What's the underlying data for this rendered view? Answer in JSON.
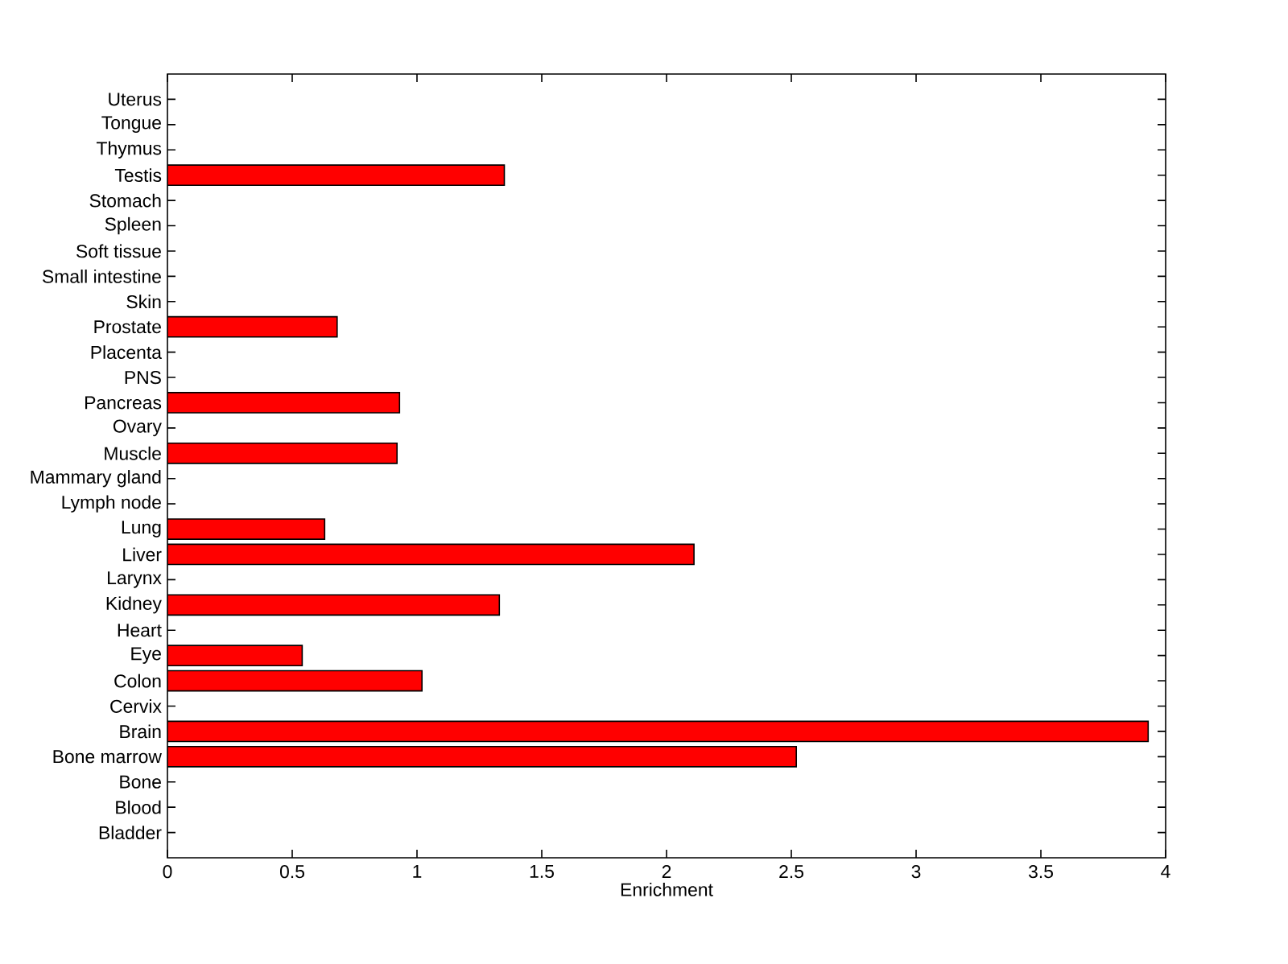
{
  "chart_data": {
    "type": "bar",
    "orientation": "horizontal",
    "xlabel": "Enrichment",
    "categories": [
      "Uterus",
      "Tongue",
      "Thymus",
      "Testis",
      "Stomach",
      "Spleen",
      "Soft tissue",
      "Small intestine",
      "Skin",
      "Prostate",
      "Placenta",
      "PNS",
      "Pancreas",
      "Ovary",
      "Muscle",
      "Mammary gland",
      "Lymph node",
      "Lung",
      "Liver",
      "Larynx",
      "Kidney",
      "Heart",
      "Eye",
      "Colon",
      "Cervix",
      "Brain",
      "Bone marrow",
      "Bone",
      "Blood",
      "Bladder"
    ],
    "values": [
      null,
      null,
      null,
      1.35,
      null,
      null,
      null,
      null,
      null,
      0.68,
      null,
      null,
      0.93,
      null,
      0.92,
      null,
      null,
      0.63,
      2.11,
      null,
      1.33,
      null,
      0.54,
      1.02,
      null,
      3.93,
      2.52,
      null,
      null,
      null
    ],
    "color": "#ff0000",
    "xlim": [
      0,
      4
    ],
    "xticks": [
      0,
      0.5,
      1,
      1.5,
      2,
      2.5,
      3,
      3.5,
      4
    ]
  }
}
